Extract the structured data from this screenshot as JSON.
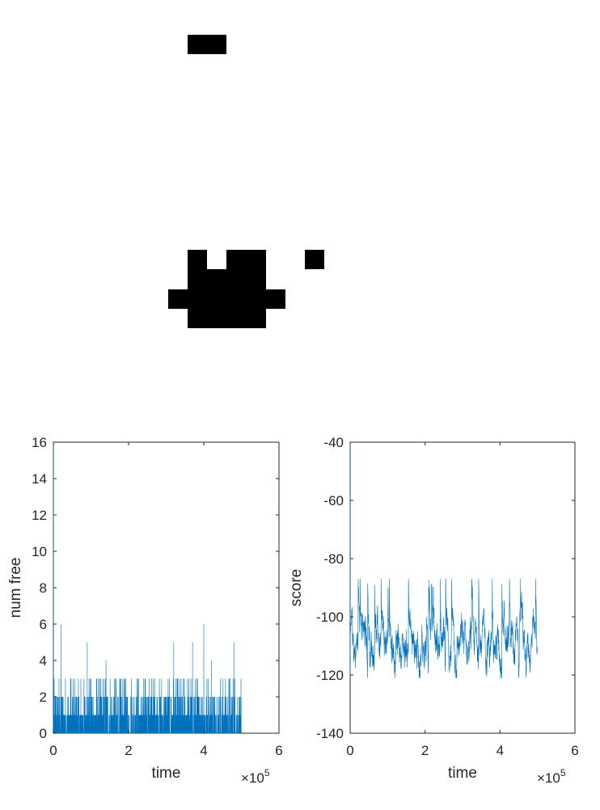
{
  "grid_image": {
    "fill_color": "#000000",
    "background": "#ffffff",
    "occupied_cells": [
      [
        9,
        1
      ],
      [
        10,
        1
      ],
      [
        9,
        12
      ],
      [
        11,
        12
      ],
      [
        12,
        12
      ],
      [
        9,
        13
      ],
      [
        10,
        13
      ],
      [
        11,
        13
      ],
      [
        12,
        13
      ],
      [
        8,
        14
      ],
      [
        9,
        14
      ],
      [
        10,
        14
      ],
      [
        11,
        14
      ],
      [
        12,
        14
      ],
      [
        13,
        14
      ],
      [
        9,
        15
      ],
      [
        10,
        15
      ],
      [
        11,
        15
      ],
      [
        12,
        15
      ],
      [
        15,
        12
      ]
    ]
  },
  "chart_data": [
    {
      "type": "line",
      "title": "",
      "xlabel": "time",
      "ylabel": "num free",
      "x_exponent_label": "×10",
      "x_exponent_power": "5",
      "xlim": [
        0,
        6
      ],
      "ylim": [
        0,
        16
      ],
      "xticks": [
        0,
        2,
        4,
        6
      ],
      "yticks": [
        0,
        2,
        4,
        6,
        8,
        10,
        12,
        14,
        16
      ],
      "xtick_labels": [
        "0",
        "2",
        "4",
        "6"
      ],
      "ytick_labels": [
        "0",
        "2",
        "4",
        "6",
        "8",
        "10",
        "12",
        "14",
        "16"
      ],
      "line_color": "#0072BD",
      "grid": false,
      "series": [
        {
          "x_range": [
            0,
            5
          ],
          "initial_value": 16,
          "baseline": 0,
          "typical_values": [
            0,
            1,
            2,
            3
          ],
          "peak_values": [
            {
              "x": 0.2,
              "y": 6
            },
            {
              "x": 0.9,
              "y": 5
            },
            {
              "x": 1.4,
              "y": 4
            },
            {
              "x": 3.2,
              "y": 5
            },
            {
              "x": 3.7,
              "y": 5
            },
            {
              "x": 4.0,
              "y": 6
            },
            {
              "x": 4.2,
              "y": 4
            },
            {
              "x": 4.8,
              "y": 5
            }
          ]
        }
      ]
    },
    {
      "type": "line",
      "title": "",
      "xlabel": "time",
      "ylabel": "score",
      "x_exponent_label": "×10",
      "x_exponent_power": "5",
      "xlim": [
        0,
        6
      ],
      "ylim": [
        -140,
        -40
      ],
      "xticks": [
        0,
        2,
        4,
        6
      ],
      "yticks": [
        -140,
        -120,
        -100,
        -80,
        -60,
        -40
      ],
      "xtick_labels": [
        "0",
        "2",
        "4",
        "6"
      ],
      "ytick_labels": [
        "-140",
        "-120",
        "-100",
        "-80",
        "-60",
        "-40"
      ],
      "line_color": "#0072BD",
      "grid": false,
      "series": [
        {
          "x_range": [
            0,
            5
          ],
          "initial_value": -40,
          "mean_value": -110,
          "min_value": -121,
          "max_value": -87
        }
      ]
    }
  ]
}
